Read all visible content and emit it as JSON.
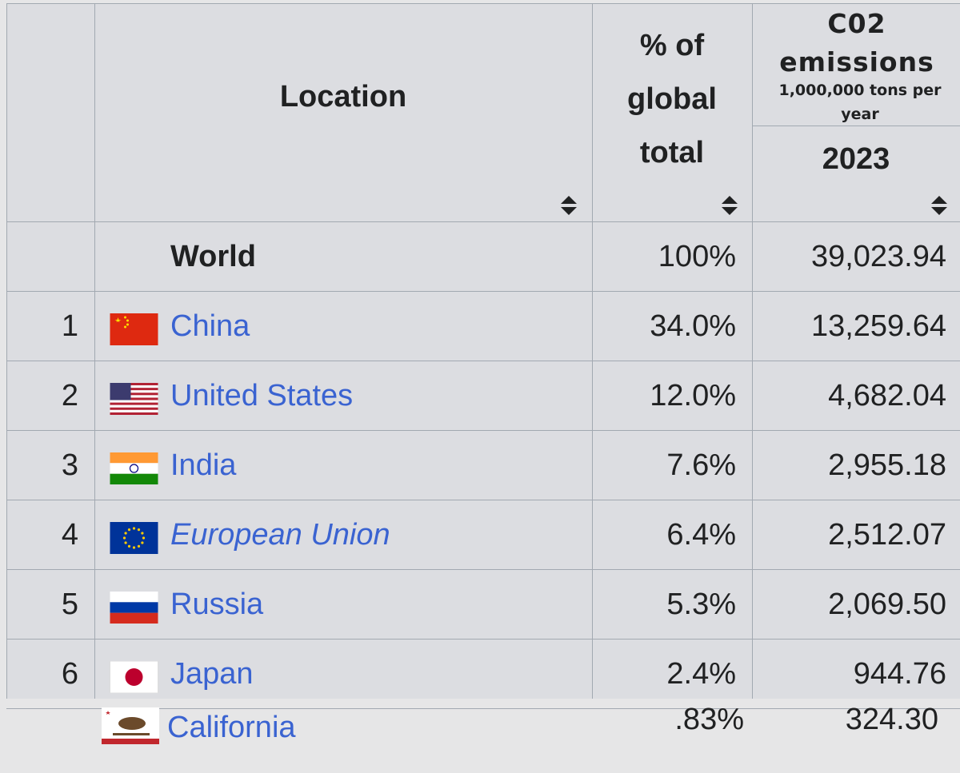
{
  "table": {
    "header": {
      "location": "Location",
      "percent": "% of global total",
      "emissions": "C02 emissions",
      "emissions_unit": "1,000,000 tons per year",
      "year": "2023"
    },
    "rows": [
      {
        "location": "World",
        "percent": "100%",
        "emissions": "39,023.94"
      },
      {
        "rank": "1",
        "location": "China",
        "percent": "34.0%",
        "emissions": "13,259.64"
      },
      {
        "rank": "2",
        "location": "United States",
        "percent": "12.0%",
        "emissions": "4,682.04"
      },
      {
        "rank": "3",
        "location": "India",
        "percent": "7.6%",
        "emissions": "2,955.18"
      },
      {
        "rank": "4",
        "location": "European Union",
        "percent": "6.4%",
        "emissions": "2,512.07"
      },
      {
        "rank": "5",
        "location": "Russia",
        "percent": "5.3%",
        "emissions": "2,069.50"
      },
      {
        "rank": "6",
        "location": "Japan",
        "percent": "2.4%",
        "emissions": "944.76"
      }
    ],
    "extra_row": {
      "location": "California",
      "percent": ".83%",
      "emissions": "324.30"
    }
  }
}
